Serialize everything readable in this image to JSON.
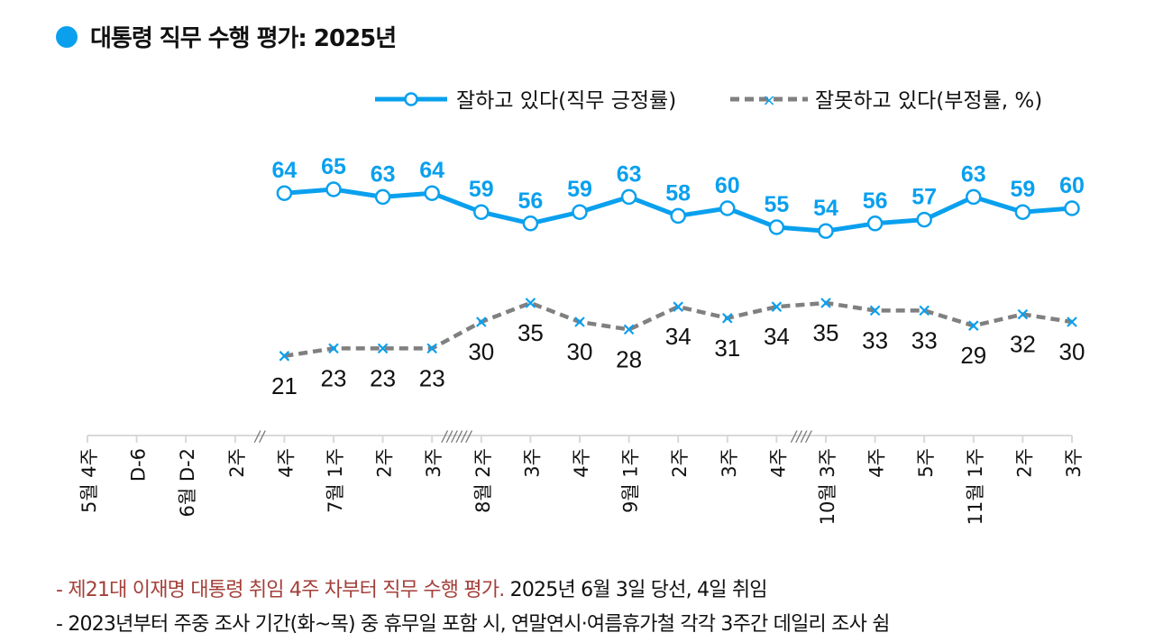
{
  "title": "대통령 직무 수행 평가: 2025년",
  "colors": {
    "positive": "#0aa0ee",
    "negative": "#808080",
    "accent_note": "#a3403a"
  },
  "chart_data": {
    "type": "line",
    "categories": [
      "5월 4주",
      "D-6",
      "6월 D-2",
      "2주",
      "4주",
      "7월 1주",
      "2주",
      "3주",
      "8월 2주",
      "3주",
      "4주",
      "9월 1주",
      "2주",
      "3주",
      "4주",
      "10월 3주",
      "4주",
      "5주",
      "11월 1주",
      "2주",
      "3주"
    ],
    "series": [
      {
        "name": "잘하고 있다(직무 긍정률)",
        "style": "solid-circle",
        "values": [
          null,
          null,
          null,
          null,
          64,
          65,
          63,
          64,
          59,
          56,
          59,
          63,
          58,
          60,
          55,
          54,
          56,
          57,
          63,
          59,
          60
        ]
      },
      {
        "name": "잘못하고 있다(부정률, %)",
        "style": "dashed-x",
        "values": [
          null,
          null,
          null,
          null,
          21,
          23,
          23,
          23,
          30,
          35,
          30,
          28,
          34,
          31,
          34,
          35,
          33,
          33,
          29,
          32,
          30
        ]
      }
    ],
    "axis_breaks": [
      {
        "between": [
          "2주",
          "4주"
        ],
        "mark": "//"
      },
      {
        "between": [
          "3주",
          "8월 2주"
        ],
        "mark": "//////"
      },
      {
        "between": [
          "4주",
          "10월 3주"
        ],
        "mark": "////"
      }
    ],
    "ylim": [
      0,
      100
    ],
    "grid": false,
    "legend": "top-right",
    "data_labels": true
  },
  "notes": {
    "line1_highlight": "- 제21대 이재명 대통령 취임 4주 차부터 직무 수행 평가.",
    "line1_rest": " 2025년 6월 3일 당선, 4일 취임",
    "line2": "- 2023년부터 주중 조사 기간(화~목) 중 휴무일 포함 시, 연말연시·여름휴가철 각각 3주간 데일리 조사 쉼"
  }
}
